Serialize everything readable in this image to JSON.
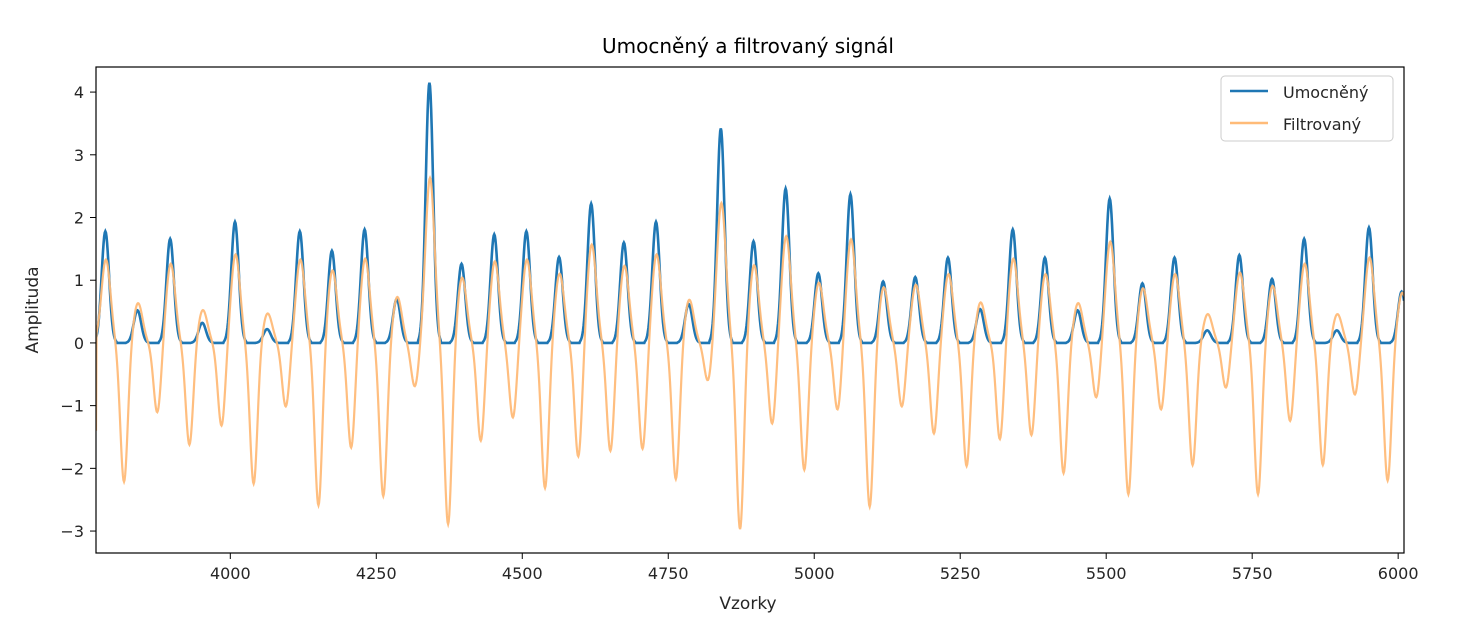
{
  "chart_data": {
    "type": "line",
    "title": "Umocněný a filtrovaný signál",
    "xlabel": "Vzorky",
    "ylabel": "Amplituda",
    "xlim": [
      3770,
      6010
    ],
    "ylim": [
      -3.35,
      4.4
    ],
    "x_ticks": [
      4000,
      4250,
      4500,
      4750,
      5000,
      5250,
      5500,
      5750,
      6000
    ],
    "y_ticks": [
      -3,
      -2,
      -1,
      0,
      1,
      2,
      3,
      4
    ],
    "x_tick_labels": [
      "4000",
      "4250",
      "4500",
      "4750",
      "5000",
      "5250",
      "5500",
      "5750",
      "6000"
    ],
    "y_tick_labels": [
      "−3",
      "−2",
      "−1",
      "0",
      "1",
      "2",
      "3",
      "4"
    ],
    "grid": false,
    "legend_position": "top-right",
    "series": [
      {
        "name": "Umocněný",
        "color": "#1f77b4",
        "peaks": [
          [
            3786,
            1.78
          ],
          [
            3841,
            0.52
          ],
          [
            3897,
            1.66
          ],
          [
            3952,
            0.32
          ],
          [
            4008,
            1.93
          ],
          [
            4063,
            0.22
          ],
          [
            4119,
            1.78
          ],
          [
            4174,
            1.47
          ],
          [
            4230,
            1.81
          ],
          [
            4285,
            0.7
          ],
          [
            4341,
            4.15
          ],
          [
            4396,
            1.26
          ],
          [
            4452,
            1.73
          ],
          [
            4507,
            1.78
          ],
          [
            4563,
            1.37
          ],
          [
            4618,
            2.22
          ],
          [
            4674,
            1.6
          ],
          [
            4729,
            1.93
          ],
          [
            4785,
            0.62
          ],
          [
            4840,
            3.42
          ],
          [
            4896,
            1.62
          ],
          [
            4951,
            2.46
          ],
          [
            5007,
            1.11
          ],
          [
            5062,
            2.37
          ],
          [
            5118,
            0.98
          ],
          [
            5173,
            1.05
          ],
          [
            5229,
            1.36
          ],
          [
            5284,
            0.54
          ],
          [
            5340,
            1.81
          ],
          [
            5395,
            1.36
          ],
          [
            5451,
            0.52
          ],
          [
            5506,
            2.3
          ],
          [
            5562,
            0.95
          ],
          [
            5617,
            1.36
          ],
          [
            5673,
            0.2
          ],
          [
            5728,
            1.4
          ],
          [
            5784,
            1.02
          ],
          [
            5839,
            1.66
          ],
          [
            5895,
            0.2
          ],
          [
            5950,
            1.84
          ],
          [
            6006,
            0.82
          ]
        ]
      },
      {
        "name": "Filtrovaný",
        "color": "#ffbb78",
        "start_value": -1.4,
        "troughs": [
          [
            3818,
            -2.22
          ],
          [
            3875,
            -1.12
          ],
          [
            3930,
            -1.63
          ],
          [
            3985,
            -1.33
          ],
          [
            4040,
            -2.25
          ],
          [
            4095,
            -1.02
          ],
          [
            4151,
            -2.6
          ],
          [
            4207,
            -1.68
          ],
          [
            4262,
            -2.45
          ],
          [
            4316,
            -0.7
          ],
          [
            4373,
            -2.9
          ],
          [
            4429,
            -1.57
          ],
          [
            4484,
            -1.2
          ],
          [
            4539,
            -2.32
          ],
          [
            4596,
            -1.83
          ],
          [
            4651,
            -1.73
          ],
          [
            4706,
            -1.7
          ],
          [
            4763,
            -2.18
          ],
          [
            4818,
            -0.62
          ],
          [
            4873,
            -2.98
          ],
          [
            4928,
            -1.3
          ],
          [
            4983,
            -2.03
          ],
          [
            5040,
            -1.08
          ],
          [
            5095,
            -2.62
          ],
          [
            5150,
            -1.02
          ],
          [
            5205,
            -1.45
          ],
          [
            5261,
            -1.97
          ],
          [
            5318,
            -1.55
          ],
          [
            5372,
            -1.48
          ],
          [
            5427,
            -2.08
          ],
          [
            5483,
            -0.88
          ],
          [
            5538,
            -2.42
          ],
          [
            5594,
            -1.07
          ],
          [
            5648,
            -1.95
          ],
          [
            5705,
            -0.72
          ],
          [
            5760,
            -2.42
          ],
          [
            5815,
            -1.25
          ],
          [
            5871,
            -1.95
          ],
          [
            5926,
            -0.83
          ],
          [
            5982,
            -2.2
          ]
        ]
      }
    ]
  }
}
